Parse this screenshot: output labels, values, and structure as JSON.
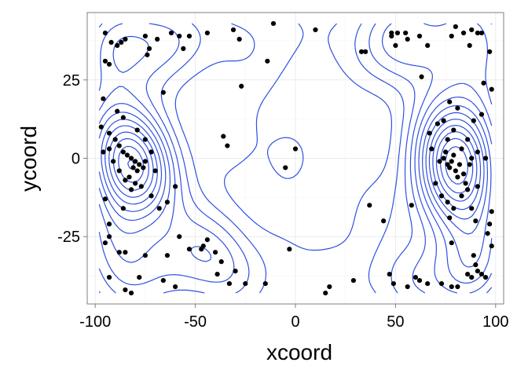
{
  "chart_data": {
    "type": "scatter",
    "title": "",
    "xlabel": "xcoord",
    "ylabel": "ycoord",
    "xlim": [
      -104,
      104
    ],
    "ylim": [
      -46.5,
      46.5
    ],
    "xticks": [
      -100,
      -50,
      0,
      50,
      100
    ],
    "xtick_labels": [
      "-100",
      "-50",
      "0",
      "50",
      "100"
    ],
    "yticks": [
      25,
      0,
      -25
    ],
    "ytick_labels": [
      "25",
      "0",
      "-25"
    ],
    "grid": true,
    "legend": "none",
    "point_color": "#000000",
    "contour_color": "#3050e0",
    "points": [
      {
        "x": -95,
        "y": 40
      },
      {
        "x": -92,
        "y": 37
      },
      {
        "x": -87,
        "y": 37
      },
      {
        "x": -85,
        "y": 38
      },
      {
        "x": -75,
        "y": 39
      },
      {
        "x": -73,
        "y": 35
      },
      {
        "x": -74,
        "y": 33
      },
      {
        "x": -69,
        "y": 38
      },
      {
        "x": -62,
        "y": 40
      },
      {
        "x": -58,
        "y": 39
      },
      {
        "x": -56,
        "y": 35
      },
      {
        "x": -53,
        "y": 39
      },
      {
        "x": -44,
        "y": 40
      },
      {
        "x": -31,
        "y": 41
      },
      {
        "x": -28,
        "y": 38
      },
      {
        "x": -95,
        "y": 31
      },
      {
        "x": -93,
        "y": 30
      },
      {
        "x": -89,
        "y": 36
      },
      {
        "x": -66,
        "y": 21
      },
      {
        "x": -96,
        "y": 19
      },
      {
        "x": -97,
        "y": 10
      },
      {
        "x": -93,
        "y": 8
      },
      {
        "x": -90,
        "y": 6
      },
      {
        "x": -88,
        "y": 4
      },
      {
        "x": -86,
        "y": 2
      },
      {
        "x": -84,
        "y": 1
      },
      {
        "x": -82,
        "y": 0
      },
      {
        "x": -80,
        "y": -1
      },
      {
        "x": -78,
        "y": -2
      },
      {
        "x": -76,
        "y": -3
      },
      {
        "x": -75,
        "y": -1
      },
      {
        "x": -79,
        "y": -4
      },
      {
        "x": -81,
        "y": -3
      },
      {
        "x": -83,
        "y": -6
      },
      {
        "x": -80,
        "y": -8
      },
      {
        "x": -77,
        "y": -9
      },
      {
        "x": -82,
        "y": -10
      },
      {
        "x": -85,
        "y": -7
      },
      {
        "x": -88,
        "y": -4
      },
      {
        "x": -91,
        "y": -1
      },
      {
        "x": -93,
        "y": 3
      },
      {
        "x": -96,
        "y": 2
      },
      {
        "x": -89,
        "y": 15
      },
      {
        "x": -86,
        "y": 13
      },
      {
        "x": -79,
        "y": 9
      },
      {
        "x": -75,
        "y": 6
      },
      {
        "x": -72,
        "y": 2
      },
      {
        "x": -70,
        "y": -4
      },
      {
        "x": -64,
        "y": -14
      },
      {
        "x": -60,
        "y": -9
      },
      {
        "x": -68,
        "y": -16
      },
      {
        "x": -72,
        "y": -12
      },
      {
        "x": -86,
        "y": -16
      },
      {
        "x": -95,
        "y": -13
      },
      {
        "x": -93,
        "y": -21
      },
      {
        "x": -93,
        "y": -25
      },
      {
        "x": -95,
        "y": -27
      },
      {
        "x": -88,
        "y": -30
      },
      {
        "x": -85,
        "y": -30
      },
      {
        "x": -75,
        "y": -31
      },
      {
        "x": -64,
        "y": -31
      },
      {
        "x": -58,
        "y": -25
      },
      {
        "x": -53,
        "y": -29
      },
      {
        "x": -47,
        "y": -29
      },
      {
        "x": -46,
        "y": -28
      },
      {
        "x": -44,
        "y": -26
      },
      {
        "x": -40,
        "y": -30
      },
      {
        "x": -37,
        "y": -33
      },
      {
        "x": -39,
        "y": -37
      },
      {
        "x": -30,
        "y": -36
      },
      {
        "x": -33,
        "y": -40
      },
      {
        "x": -25,
        "y": -40
      },
      {
        "x": -15,
        "y": -40
      },
      {
        "x": -60,
        "y": -41
      },
      {
        "x": -66,
        "y": -39
      },
      {
        "x": -78,
        "y": -38
      },
      {
        "x": -93,
        "y": -38
      },
      {
        "x": -85,
        "y": -42
      },
      {
        "x": -82,
        "y": -43
      },
      {
        "x": -36,
        "y": 7
      },
      {
        "x": -34,
        "y": 4
      },
      {
        "x": -27,
        "y": 23
      },
      {
        "x": -14,
        "y": 31
      },
      {
        "x": -11,
        "y": 43
      },
      {
        "x": 10,
        "y": 41
      },
      {
        "x": -5,
        "y": -3
      },
      {
        "x": -3,
        "y": -29
      },
      {
        "x": 0,
        "y": 3
      },
      {
        "x": 15,
        "y": -43
      },
      {
        "x": 17,
        "y": -41
      },
      {
        "x": 29,
        "y": -39
      },
      {
        "x": 33,
        "y": 34
      },
      {
        "x": 35,
        "y": 34
      },
      {
        "x": 37,
        "y": -15
      },
      {
        "x": 44,
        "y": -20
      },
      {
        "x": 48,
        "y": 39
      },
      {
        "x": 48,
        "y": 40
      },
      {
        "x": 50,
        "y": 36
      },
      {
        "x": 51,
        "y": 40
      },
      {
        "x": 55,
        "y": 40
      },
      {
        "x": 56,
        "y": 38
      },
      {
        "x": 62,
        "y": 39
      },
      {
        "x": 63,
        "y": 26
      },
      {
        "x": 66,
        "y": 36
      },
      {
        "x": 67,
        "y": 8
      },
      {
        "x": 68,
        "y": 3
      },
      {
        "x": 71,
        "y": 11
      },
      {
        "x": 72,
        "y": -1
      },
      {
        "x": 74,
        "y": 0
      },
      {
        "x": 75,
        "y": 2
      },
      {
        "x": 76,
        "y": -2
      },
      {
        "x": 77,
        "y": -3
      },
      {
        "x": 78,
        "y": -1
      },
      {
        "x": 79,
        "y": 1
      },
      {
        "x": 80,
        "y": -4
      },
      {
        "x": 81,
        "y": -6
      },
      {
        "x": 82,
        "y": -2
      },
      {
        "x": 83,
        "y": 3
      },
      {
        "x": 84,
        "y": -5
      },
      {
        "x": 85,
        "y": -8
      },
      {
        "x": 86,
        "y": -10
      },
      {
        "x": 87,
        "y": -2
      },
      {
        "x": 88,
        "y": 0
      },
      {
        "x": 76,
        "y": 6
      },
      {
        "x": 79,
        "y": 9
      },
      {
        "x": 86,
        "y": 6
      },
      {
        "x": 89,
        "y": 12
      },
      {
        "x": 81,
        "y": 16
      },
      {
        "x": 77,
        "y": 18
      },
      {
        "x": 74,
        "y": 12
      },
      {
        "x": 70,
        "y": -8
      },
      {
        "x": 73,
        "y": -12
      },
      {
        "x": 76,
        "y": -14
      },
      {
        "x": 79,
        "y": -16
      },
      {
        "x": 83,
        "y": -12
      },
      {
        "x": 88,
        "y": -16
      },
      {
        "x": 91,
        "y": -9
      },
      {
        "x": 91,
        "y": 2
      },
      {
        "x": 95,
        "y": 0
      },
      {
        "x": 93,
        "y": 14
      },
      {
        "x": 94,
        "y": 24
      },
      {
        "x": 98,
        "y": 22
      },
      {
        "x": 87,
        "y": 36
      },
      {
        "x": 84,
        "y": 40
      },
      {
        "x": 80,
        "y": 42
      },
      {
        "x": 78,
        "y": 39
      },
      {
        "x": 88,
        "y": 41
      },
      {
        "x": 91,
        "y": 40
      },
      {
        "x": 93,
        "y": 40
      },
      {
        "x": 97,
        "y": 34
      },
      {
        "x": 58,
        "y": -15
      },
      {
        "x": 77,
        "y": -19
      },
      {
        "x": 90,
        "y": -20
      },
      {
        "x": 98,
        "y": -17
      },
      {
        "x": 97,
        "y": -21
      },
      {
        "x": 96,
        "y": -24
      },
      {
        "x": 98,
        "y": -28
      },
      {
        "x": 78,
        "y": -27
      },
      {
        "x": 89,
        "y": -31
      },
      {
        "x": 90,
        "y": -34
      },
      {
        "x": 91,
        "y": -36
      },
      {
        "x": 86,
        "y": -37
      },
      {
        "x": 88,
        "y": -38
      },
      {
        "x": 93,
        "y": -37
      },
      {
        "x": 95,
        "y": -38
      },
      {
        "x": 81,
        "y": -41
      },
      {
        "x": 78,
        "y": -41
      },
      {
        "x": 73,
        "y": -40
      },
      {
        "x": 66,
        "y": -40
      },
      {
        "x": 62,
        "y": -39
      },
      {
        "x": 60,
        "y": -38
      },
      {
        "x": 56,
        "y": -41
      },
      {
        "x": 49,
        "y": -40
      },
      {
        "x": 47,
        "y": -37
      }
    ]
  }
}
